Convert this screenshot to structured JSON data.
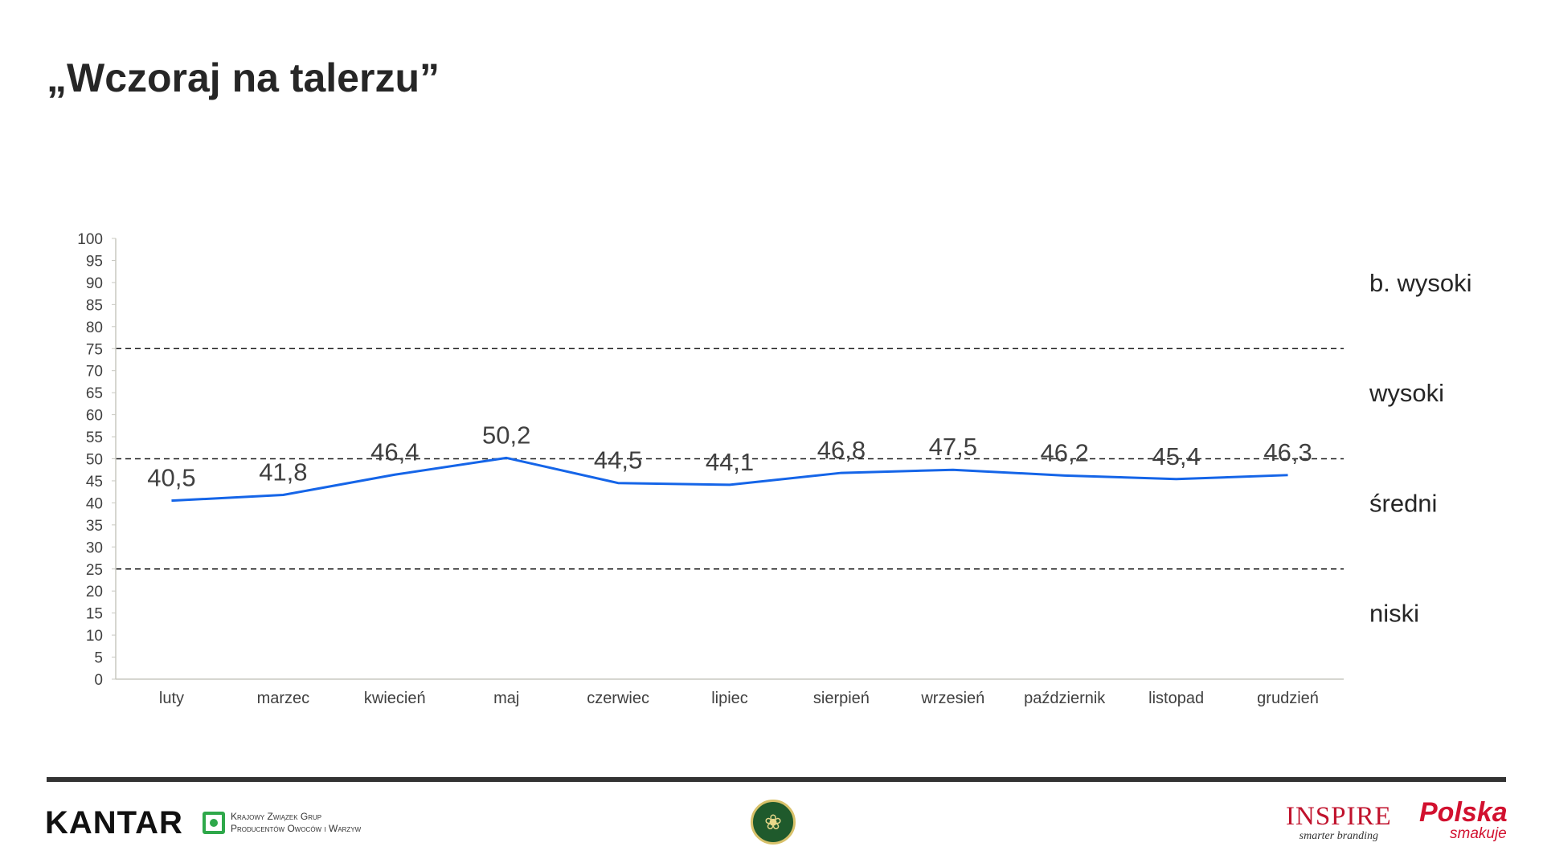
{
  "title": "„Wczoraj na talerzu”",
  "chart_data": {
    "type": "line",
    "categories": [
      "luty",
      "marzec",
      "kwiecień",
      "maj",
      "czerwiec",
      "lipiec",
      "sierpień",
      "wrzesień",
      "październik",
      "listopad",
      "grudzień"
    ],
    "series": [
      {
        "values": [
          40.5,
          41.8,
          46.4,
          50.2,
          44.5,
          44.1,
          46.8,
          47.5,
          46.2,
          45.4,
          46.3
        ],
        "color": "#1565e8"
      }
    ],
    "data_labels": [
      "40,5",
      "41,8",
      "46,4",
      "50,2",
      "44,5",
      "44,1",
      "46,8",
      "47,5",
      "46,2",
      "45,4",
      "46,3"
    ],
    "ylim": [
      0,
      100
    ],
    "y_ticks": [
      0,
      5,
      10,
      15,
      20,
      25,
      30,
      35,
      40,
      45,
      50,
      55,
      60,
      65,
      70,
      75,
      80,
      85,
      90,
      95,
      100
    ],
    "reference_lines": [
      25,
      50,
      75
    ],
    "zones": [
      {
        "label": "b. wysoki",
        "y": 90
      },
      {
        "label": "wysoki",
        "y": 65
      },
      {
        "label": "średni",
        "y": 40
      },
      {
        "label": "niski",
        "y": 15
      }
    ],
    "grid": false,
    "xlabel": "",
    "ylabel": ""
  },
  "footer": {
    "kantar": "KANTAR",
    "kzgp_line1": "Krajowy Związek Grup",
    "kzgp_line2": "Producentów Owoców i Warzyw",
    "inspire": "INSPIRE",
    "inspire_sub": "smarter branding",
    "polska": "Polska",
    "polska_sub": "smakuje",
    "colors": {
      "inspire": "#c0122c",
      "polska": "#d2112f",
      "kzgp": "#2ea84a"
    }
  }
}
